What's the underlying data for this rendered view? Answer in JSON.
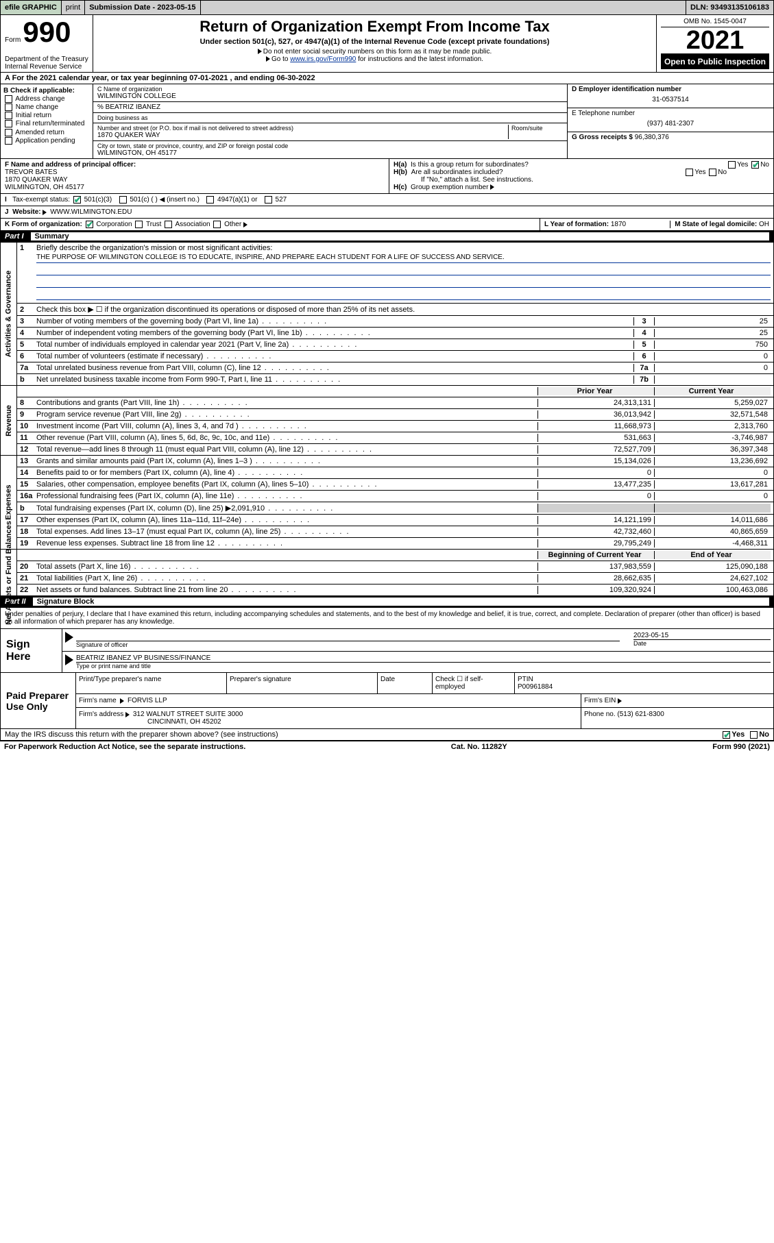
{
  "efile": {
    "graphic": "efile GRAPHIC",
    "print": "print",
    "submission_label": "Submission Date - 2023-05-15",
    "dln": "DLN: 93493135106183"
  },
  "header": {
    "form_prefix": "Form",
    "form_no": "990",
    "title": "Return of Organization Exempt From Income Tax",
    "subtitle": "Under section 501(c), 527, or 4947(a)(1) of the Internal Revenue Code (except private foundations)",
    "note1": "Do not enter social security numbers on this form as it may be made public.",
    "note2_pre": "Go to ",
    "note2_link": "www.irs.gov/Form990",
    "note2_post": " for instructions and the latest information.",
    "dept": "Department of the Treasury\nInternal Revenue Service",
    "omb": "OMB No. 1545-0047",
    "year": "2021",
    "open_public": "Open to Public Inspection"
  },
  "A": {
    "text_pre": "For the 2021 calendar year, or tax year beginning ",
    "begin": "07-01-2021",
    "mid": " , and ending ",
    "end": "06-30-2022"
  },
  "B": {
    "hdr": "B Check if applicable:",
    "opts": [
      "Address change",
      "Name change",
      "Initial return",
      "Final return/terminated",
      "Amended return",
      "Application pending"
    ]
  },
  "C": {
    "name_lbl": "C Name of organization",
    "name": "WILMINGTON COLLEGE",
    "care_of": "% BEATRIZ IBANEZ",
    "dba_lbl": "Doing business as",
    "addr_lbl": "Number and street (or P.O. box if mail is not delivered to street address)",
    "room_lbl": "Room/suite",
    "addr": "1870 QUAKER WAY",
    "city_lbl": "City or town, state or province, country, and ZIP or foreign postal code",
    "city": "WILMINGTON, OH  45177"
  },
  "D": {
    "lbl": "D Employer identification number",
    "val": "31-0537514"
  },
  "E": {
    "lbl": "E Telephone number",
    "val": "(937) 481-2307"
  },
  "G": {
    "lbl": "G Gross receipts $",
    "val": "96,380,376"
  },
  "F": {
    "lbl": "F  Name and address of principal officer:",
    "name": "TREVOR BATES",
    "addr": "1870 QUAKER WAY",
    "city": "WILMINGTON, OH  45177"
  },
  "H": {
    "a": "Is this a group return for subordinates?",
    "b": "Are all subordinates included?",
    "b_note": "If \"No,\" attach a list. See instructions.",
    "c": "Group exemption number",
    "a_yes": "Yes",
    "a_no": "No"
  },
  "I": {
    "lbl": "Tax-exempt status:",
    "o1": "501(c)(3)",
    "o2": "501(c) (  ) ◀ (insert no.)",
    "o3": "4947(a)(1) or",
    "o4": "527"
  },
  "J": {
    "lbl": "Website:",
    "val": "WWW.WILMINGTON.EDU"
  },
  "K": {
    "lbl": "K Form of organization:",
    "o1": "Corporation",
    "o2": "Trust",
    "o3": "Association",
    "o4": "Other"
  },
  "L": {
    "lbl": "L Year of formation:",
    "val": "1870"
  },
  "M": {
    "lbl": "M State of legal domicile:",
    "val": "OH"
  },
  "partI": {
    "hdr": "Part I",
    "title": "Summary",
    "l1_label": "Briefly describe the organization's mission or most significant activities:",
    "l1": "THE PURPOSE OF WILMINGTON COLLEGE IS TO EDUCATE, INSPIRE, AND PREPARE EACH STUDENT FOR A LIFE OF SUCCESS AND SERVICE.",
    "l2": "Check this box ▶ ☐  if the organization discontinued its operations or disposed of more than 25% of its net assets.",
    "rows_gov": [
      {
        "n": "3",
        "d": "Number of voting members of the governing body (Part VI, line 1a)",
        "b": "3",
        "v": "25"
      },
      {
        "n": "4",
        "d": "Number of independent voting members of the governing body (Part VI, line 1b)",
        "b": "4",
        "v": "25"
      },
      {
        "n": "5",
        "d": "Total number of individuals employed in calendar year 2021 (Part V, line 2a)",
        "b": "5",
        "v": "750"
      },
      {
        "n": "6",
        "d": "Total number of volunteers (estimate if necessary)",
        "b": "6",
        "v": "0"
      },
      {
        "n": "7a",
        "d": "Total unrelated business revenue from Part VIII, column (C), line 12",
        "b": "7a",
        "v": "0"
      },
      {
        "n": "b",
        "d": "Net unrelated business taxable income from Form 990-T, Part I, line 11",
        "b": "7b",
        "v": ""
      }
    ],
    "prior_yr": "Prior Year",
    "cur_yr": "Current Year",
    "rows_rev": [
      {
        "n": "8",
        "d": "Contributions and grants (Part VIII, line 1h)",
        "p": "24,313,131",
        "c": "5,259,027"
      },
      {
        "n": "9",
        "d": "Program service revenue (Part VIII, line 2g)",
        "p": "36,013,942",
        "c": "32,571,548"
      },
      {
        "n": "10",
        "d": "Investment income (Part VIII, column (A), lines 3, 4, and 7d )",
        "p": "11,668,973",
        "c": "2,313,760"
      },
      {
        "n": "11",
        "d": "Other revenue (Part VIII, column (A), lines 5, 6d, 8c, 9c, 10c, and 11e)",
        "p": "531,663",
        "c": "-3,746,987"
      },
      {
        "n": "12",
        "d": "Total revenue—add lines 8 through 11 (must equal Part VIII, column (A), line 12)",
        "p": "72,527,709",
        "c": "36,397,348"
      }
    ],
    "rows_exp": [
      {
        "n": "13",
        "d": "Grants and similar amounts paid (Part IX, column (A), lines 1–3 )",
        "p": "15,134,026",
        "c": "13,236,692"
      },
      {
        "n": "14",
        "d": "Benefits paid to or for members (Part IX, column (A), line 4)",
        "p": "0",
        "c": "0"
      },
      {
        "n": "15",
        "d": "Salaries, other compensation, employee benefits (Part IX, column (A), lines 5–10)",
        "p": "13,477,235",
        "c": "13,617,281"
      },
      {
        "n": "16a",
        "d": "Professional fundraising fees (Part IX, column (A), line 11e)",
        "p": "0",
        "c": "0"
      },
      {
        "n": "b",
        "d": "Total fundraising expenses (Part IX, column (D), line 25) ▶2,091,910",
        "p": "",
        "c": "",
        "grey": true
      },
      {
        "n": "17",
        "d": "Other expenses (Part IX, column (A), lines 11a–11d, 11f–24e)",
        "p": "14,121,199",
        "c": "14,011,686"
      },
      {
        "n": "18",
        "d": "Total expenses. Add lines 13–17 (must equal Part IX, column (A), line 25)",
        "p": "42,732,460",
        "c": "40,865,659"
      },
      {
        "n": "19",
        "d": "Revenue less expenses. Subtract line 18 from line 12",
        "p": "29,795,249",
        "c": "-4,468,311"
      }
    ],
    "boy": "Beginning of Current Year",
    "eoy": "End of Year",
    "rows_net": [
      {
        "n": "20",
        "d": "Total assets (Part X, line 16)",
        "p": "137,983,559",
        "c": "125,090,188"
      },
      {
        "n": "21",
        "d": "Total liabilities (Part X, line 26)",
        "p": "28,662,635",
        "c": "24,627,102"
      },
      {
        "n": "22",
        "d": "Net assets or fund balances. Subtract line 21 from line 20",
        "p": "109,320,924",
        "c": "100,463,086"
      }
    ],
    "side_gov": "Activities & Governance",
    "side_rev": "Revenue",
    "side_exp": "Expenses",
    "side_net": "Net Assets or Fund Balances"
  },
  "partII": {
    "hdr": "Part II",
    "title": "Signature Block"
  },
  "decl": "Under penalties of perjury, I declare that I have examined this return, including accompanying schedules and statements, and to the best of my knowledge and belief, it is true, correct, and complete. Declaration of preparer (other than officer) is based on all information of which preparer has any knowledge.",
  "sign": {
    "here": "Sign Here",
    "officer_sig": "Signature of officer",
    "date": "Date",
    "date_val": "2023-05-15",
    "officer_name": "BEATRIZ IBANEZ VP BUSINESS/FINANCE",
    "name_lbl": "Type or print name and title"
  },
  "prep": {
    "label": "Paid Preparer Use Only",
    "c1": "Print/Type preparer's name",
    "c2": "Preparer's signature",
    "c3": "Date",
    "c4": "Check ☐ if self-employed",
    "c5": "PTIN",
    "ptin": "P00961884",
    "firm_lbl": "Firm's name",
    "firm": "FORVIS LLP",
    "ein_lbl": "Firm's EIN",
    "addr_lbl": "Firm's address",
    "addr": "312 WALNUT STREET SUITE 3000",
    "city": "CINCINNATI, OH  45202",
    "phone_lbl": "Phone no.",
    "phone": "(513) 621-8300"
  },
  "may": "May the IRS discuss this return with the preparer shown above? (see instructions)",
  "may_yes": "Yes",
  "may_no": "No",
  "footer": {
    "left": "For Paperwork Reduction Act Notice, see the separate instructions.",
    "mid": "Cat. No. 11282Y",
    "right": "Form 990 (2021)"
  }
}
